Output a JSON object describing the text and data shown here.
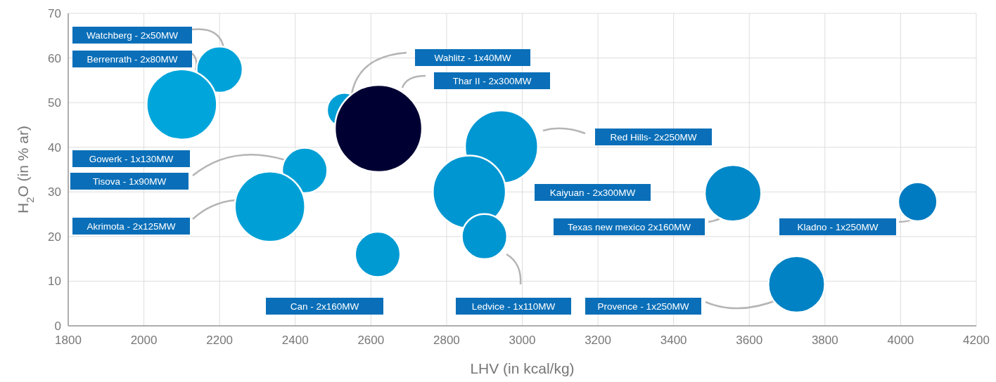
{
  "chart_data": {
    "type": "bubble",
    "xlabel": "LHV (in kcal/kg)",
    "ylabel": "H$_{2}$O (in % ar)",
    "xlim": [
      1800,
      4200
    ],
    "xticks": [
      1800,
      2000,
      2200,
      2400,
      2600,
      2800,
      3000,
      3200,
      3400,
      3600,
      3800,
      4000,
      4200
    ],
    "ylim": [
      0,
      70
    ],
    "yticks": [
      0,
      10,
      20,
      30,
      40,
      50,
      60,
      70
    ],
    "grid": true,
    "x": [
      2200,
      2100,
      2530,
      2620,
      2945,
      2860,
      2900,
      2425,
      2333,
      2618,
      3557,
      4045,
      3725
    ],
    "values": [
      57.4,
      49.6,
      48.3,
      44.2,
      40.1,
      30,
      20,
      34.8,
      26.7,
      16,
      29.7,
      27.8,
      9.3
    ],
    "sizes": [
      0.28,
      0.65,
      0.16,
      1,
      0.7,
      0.7,
      0.27,
      0.27,
      0.65,
      0.27,
      0.42,
      0.2,
      0.42
    ],
    "colors": [
      "#00a3d9",
      "#00a6db",
      "#009fd6",
      "#000033",
      "#0097d2",
      "#0096d1",
      "#0096d1",
      "#00a0d6",
      "#00a0d6",
      "#009ad3",
      "#0088c8",
      "#007bc1",
      "#0082c4"
    ],
    "annotations": [
      "Watchberg - 2x50MW",
      "Berrenrath - 2x80MW",
      "Wahlitz - 1x40MW",
      "Thar II - 2x300MW",
      "Red Hills- 2x250MW",
      "Kaiyuan - 2x300MW",
      "Ledvice - 1x110MW",
      "Gowerk - 1x130MW",
      "Tisova - 1x90MW",
      "Akrimota - 2x125MW",
      "Can - 2x160MW",
      "Texas new mexico 2x160MW",
      "Kladno - 1x250MW",
      "Provence - 1x250MW"
    ]
  }
}
